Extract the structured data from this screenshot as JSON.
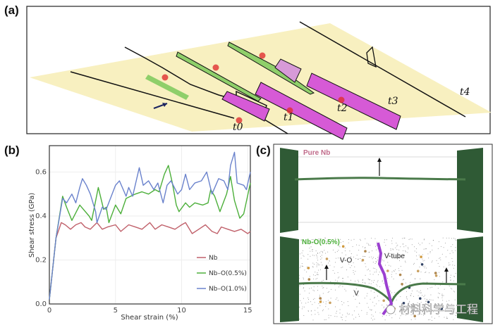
{
  "panels": {
    "a": {
      "label": "(a)",
      "time_labels": [
        "t0",
        "t1",
        "t2",
        "t3",
        "t4"
      ]
    },
    "b": {
      "label": "(b)"
    },
    "c": {
      "label": "(c)",
      "top_title": "Pure Nb",
      "bottom_title": "Nb-O(0.5%)",
      "annotations": {
        "vo": "V-O",
        "vtube": "V-tube",
        "v": "V"
      }
    }
  },
  "watermark": "材料科学与工程",
  "colors": {
    "plane": "#f8f0c0",
    "magenta": "#d65ad6",
    "green_ribbon": "#8fcf6a",
    "dislocation_green": "#3f6b3f",
    "wall_green": "#2f5a35"
  },
  "chart_data": {
    "type": "line",
    "xlabel": "Shear strain (%)",
    "ylabel": "Shear stress (GPa)",
    "xlim": [
      0,
      15.2
    ],
    "ylim": [
      0,
      0.72
    ],
    "xticks": [
      0,
      5,
      10,
      15
    ],
    "yticks": [
      "0.0",
      "0.2",
      "0.4",
      "0.6"
    ],
    "grid": true,
    "legend_position": "bottom-right",
    "series": [
      {
        "name": "Nb",
        "color": "#c0606a",
        "x": [
          0,
          0.5,
          0.9,
          1.2,
          1.6,
          2,
          2.4,
          2.7,
          3.1,
          3.6,
          4,
          4.4,
          5,
          5.4,
          6,
          6.5,
          7,
          7.6,
          8,
          8.5,
          9,
          9.5,
          10,
          10.3,
          10.8,
          11.3,
          11.8,
          12.3,
          12.7,
          13,
          13.5,
          14,
          14.5,
          15,
          15.2
        ],
        "y": [
          0.02,
          0.3,
          0.37,
          0.36,
          0.34,
          0.36,
          0.37,
          0.35,
          0.34,
          0.37,
          0.34,
          0.35,
          0.36,
          0.33,
          0.36,
          0.35,
          0.34,
          0.37,
          0.34,
          0.36,
          0.35,
          0.34,
          0.36,
          0.37,
          0.32,
          0.34,
          0.36,
          0.33,
          0.32,
          0.35,
          0.34,
          0.33,
          0.34,
          0.32,
          0.33
        ]
      },
      {
        "name": "Nb–O(0.5%)",
        "color": "#4caf3a",
        "x": [
          0,
          0.5,
          1,
          1.3,
          1.7,
          2.3,
          3,
          3.2,
          3.7,
          4.1,
          4.3,
          4.5,
          5,
          5.4,
          5.8,
          6.5,
          7,
          7.5,
          8,
          8.3,
          8.7,
          9,
          9.3,
          9.6,
          9.8,
          10.3,
          10.6,
          11,
          11.6,
          12,
          12.2,
          12.5,
          12.9,
          13.4,
          13.7,
          14,
          14.4,
          14.7,
          15.2
        ],
        "y": [
          0.02,
          0.3,
          0.49,
          0.44,
          0.38,
          0.45,
          0.4,
          0.38,
          0.53,
          0.43,
          0.44,
          0.37,
          0.45,
          0.41,
          0.48,
          0.5,
          0.51,
          0.5,
          0.52,
          0.51,
          0.59,
          0.63,
          0.55,
          0.45,
          0.42,
          0.46,
          0.44,
          0.46,
          0.45,
          0.46,
          0.52,
          0.49,
          0.42,
          0.5,
          0.58,
          0.47,
          0.39,
          0.41,
          0.55
        ]
      },
      {
        "name": "Nb–O(1.0%)",
        "color": "#6a82cc",
        "x": [
          0,
          0.5,
          1,
          1.3,
          1.7,
          2,
          2.3,
          2.5,
          2.8,
          3.1,
          3.5,
          3.6,
          4,
          4.3,
          5,
          5.3,
          5.8,
          6,
          6.3,
          6.8,
          7.1,
          7.5,
          7.9,
          8.2,
          8.6,
          8.9,
          9.2,
          9.7,
          10,
          10.3,
          10.6,
          11,
          11.5,
          11.9,
          12.3,
          12.8,
          13.2,
          13.5,
          13.7,
          14,
          14.2,
          14.7,
          14.9,
          15.2
        ],
        "y": [
          0.02,
          0.3,
          0.48,
          0.46,
          0.5,
          0.46,
          0.53,
          0.57,
          0.54,
          0.5,
          0.42,
          0.37,
          0.44,
          0.43,
          0.54,
          0.56,
          0.49,
          0.53,
          0.49,
          0.62,
          0.54,
          0.56,
          0.52,
          0.55,
          0.46,
          0.54,
          0.56,
          0.5,
          0.52,
          0.59,
          0.52,
          0.55,
          0.56,
          0.6,
          0.5,
          0.57,
          0.56,
          0.52,
          0.63,
          0.69,
          0.55,
          0.54,
          0.52,
          0.6
        ]
      }
    ]
  }
}
